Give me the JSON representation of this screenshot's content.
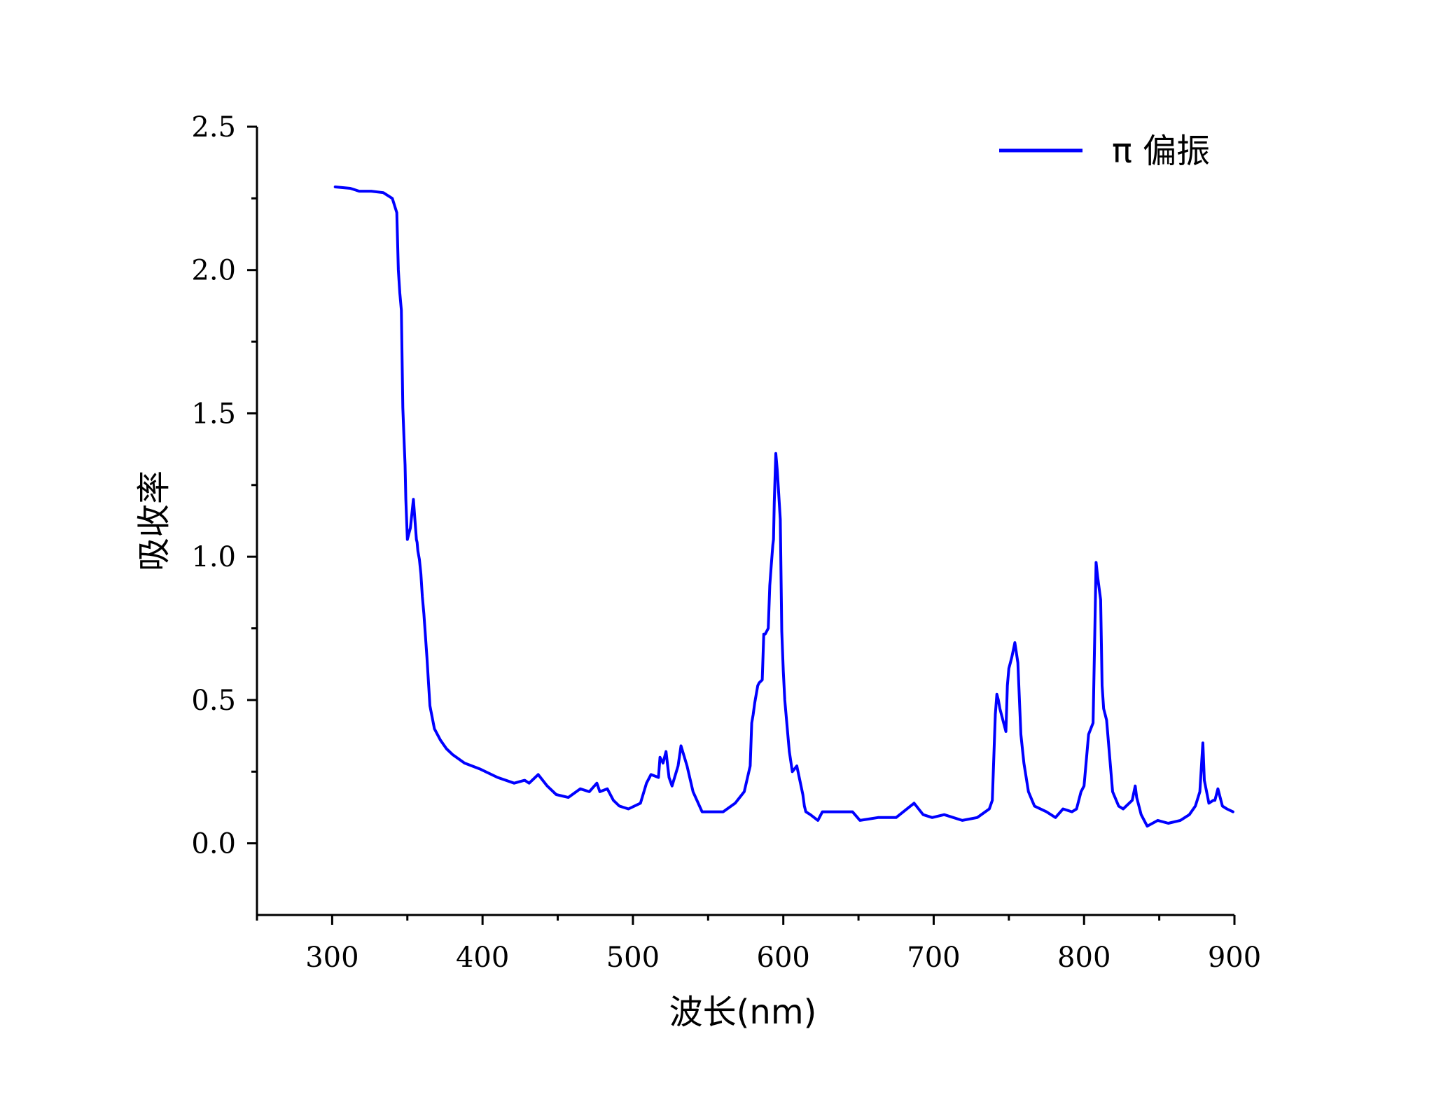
{
  "chart_data": {
    "type": "line",
    "title": "",
    "xlabel": "波长(nm)",
    "ylabel": "吸收率",
    "xlim": [
      250,
      900
    ],
    "ylim": [
      -0.25,
      2.5
    ],
    "xticks": [
      "300",
      "400",
      "500",
      "600",
      "700",
      "800",
      "900"
    ],
    "yticks": [
      "0.0",
      "0.5",
      "1.0",
      "1.5",
      "2.0",
      "2.5"
    ],
    "grid": false,
    "legend_position": "top-right",
    "colors": {
      "series": "#0000ff",
      "axis": "#000000"
    },
    "series": [
      {
        "name": "π 偏振",
        "x": [
          302,
          312,
          318,
          326,
          334,
          340,
          343,
          344,
          345,
          346,
          347,
          348,
          348.5,
          349,
          350,
          351,
          352,
          354,
          356,
          356.5,
          357,
          358,
          359,
          360,
          361,
          363,
          365,
          368,
          372,
          376,
          380,
          388,
          398,
          410,
          421,
          428,
          431,
          437,
          443,
          449,
          457,
          465,
          471,
          476,
          478,
          483,
          487,
          491,
          497,
          505,
          509,
          512,
          517,
          518,
          520,
          522,
          524,
          526,
          530,
          532,
          536,
          540,
          546,
          552,
          560,
          568,
          574,
          578,
          579,
          580,
          581,
          583,
          584,
          586,
          587,
          588,
          590,
          591,
          592,
          593,
          593.5,
          594,
          595,
          596,
          598,
          599,
          600,
          601,
          603,
          604,
          606,
          609,
          613,
          614,
          615,
          618,
          623,
          626,
          636,
          646,
          651,
          663,
          675,
          687,
          693,
          699,
          707,
          719,
          729,
          737,
          739,
          741,
          742,
          743,
          744,
          746,
          748,
          749,
          750,
          751,
          752,
          754,
          756,
          758,
          760,
          763,
          767,
          775,
          781,
          786,
          792,
          795,
          798,
          800,
          803,
          806,
          807,
          808,
          809,
          811,
          812,
          813,
          815,
          819,
          823,
          826,
          832,
          834,
          835,
          838,
          842,
          849,
          856,
          864,
          870,
          874,
          877,
          879,
          880,
          883,
          886,
          887,
          889,
          892,
          895,
          899
        ],
        "values": [
          2.29,
          2.285,
          2.275,
          2.275,
          2.27,
          2.25,
          2.2,
          2.0,
          1.92,
          1.86,
          1.52,
          1.38,
          1.32,
          1.2,
          1.06,
          1.08,
          1.1,
          1.2,
          1.06,
          1.05,
          1.02,
          0.99,
          0.94,
          0.86,
          0.8,
          0.65,
          0.48,
          0.4,
          0.36,
          0.33,
          0.31,
          0.28,
          0.26,
          0.23,
          0.21,
          0.22,
          0.21,
          0.24,
          0.2,
          0.17,
          0.16,
          0.19,
          0.18,
          0.21,
          0.18,
          0.19,
          0.15,
          0.13,
          0.12,
          0.14,
          0.21,
          0.24,
          0.23,
          0.3,
          0.28,
          0.32,
          0.23,
          0.2,
          0.27,
          0.34,
          0.27,
          0.18,
          0.11,
          0.11,
          0.11,
          0.14,
          0.18,
          0.27,
          0.42,
          0.45,
          0.49,
          0.55,
          0.56,
          0.57,
          0.73,
          0.73,
          0.75,
          0.9,
          0.97,
          1.04,
          1.06,
          1.19,
          1.36,
          1.3,
          1.13,
          0.74,
          0.6,
          0.5,
          0.38,
          0.32,
          0.25,
          0.27,
          0.17,
          0.13,
          0.11,
          0.1,
          0.08,
          0.11,
          0.11,
          0.11,
          0.08,
          0.09,
          0.09,
          0.14,
          0.1,
          0.09,
          0.1,
          0.08,
          0.09,
          0.12,
          0.15,
          0.45,
          0.52,
          0.5,
          0.47,
          0.43,
          0.39,
          0.55,
          0.61,
          0.63,
          0.65,
          0.7,
          0.63,
          0.38,
          0.28,
          0.18,
          0.13,
          0.11,
          0.09,
          0.12,
          0.11,
          0.12,
          0.18,
          0.2,
          0.38,
          0.42,
          0.7,
          0.98,
          0.93,
          0.85,
          0.55,
          0.47,
          0.43,
          0.18,
          0.13,
          0.12,
          0.15,
          0.2,
          0.16,
          0.1,
          0.06,
          0.08,
          0.07,
          0.08,
          0.1,
          0.13,
          0.18,
          0.35,
          0.22,
          0.14,
          0.15,
          0.15,
          0.19,
          0.13,
          0.12,
          0.11
        ]
      }
    ]
  }
}
